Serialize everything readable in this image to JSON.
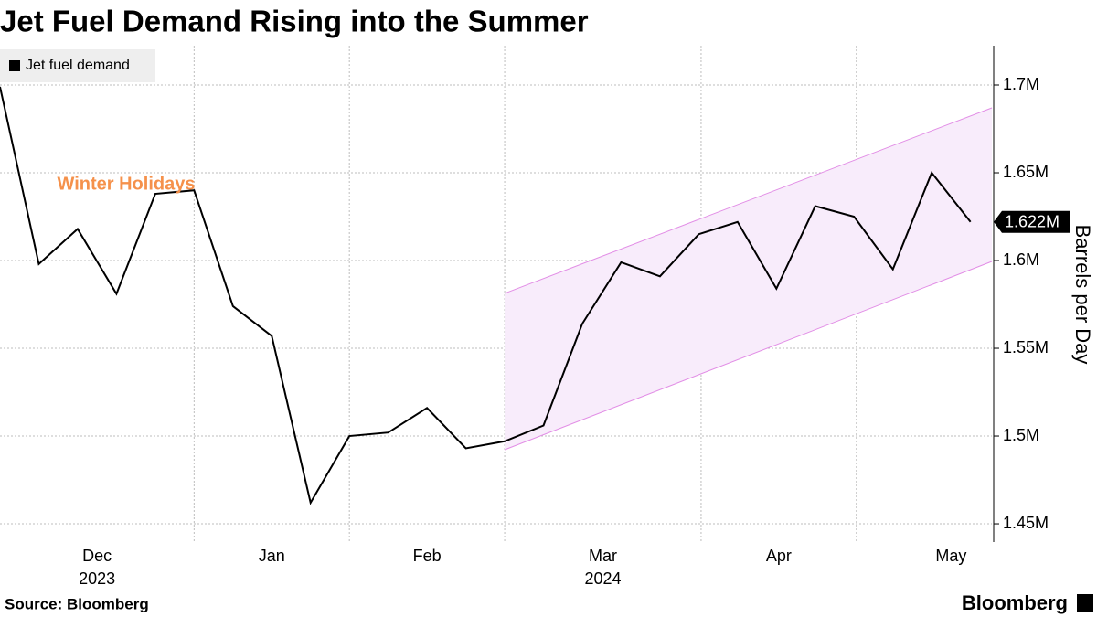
{
  "chart_data": {
    "type": "line",
    "title": "Jet Fuel Demand Rising into the Summer",
    "y_axis_label": "Barrels per Day",
    "source": "Source: Bloomberg",
    "brand": "Bloomberg",
    "x": [
      0,
      1,
      2,
      3,
      4,
      5,
      6,
      7,
      8,
      9,
      10,
      11,
      12,
      13,
      14,
      15,
      16,
      17,
      18,
      19,
      20,
      21,
      22,
      23,
      24,
      25
    ],
    "series": [
      {
        "name": "Jet fuel demand",
        "color": "#000000",
        "values": [
          1699000,
          1598000,
          1618000,
          1581000,
          1638000,
          1640000,
          1574000,
          1557000,
          1462000,
          1500000,
          1502000,
          1516000,
          1493000,
          1497000,
          1506000,
          1564000,
          1599000,
          1591000,
          1615000,
          1622000,
          1584000,
          1631000,
          1625000,
          1595000,
          1650000,
          1622000
        ],
        "last_value_label": "1.622M"
      }
    ],
    "xlim": [
      0,
      25.55
    ],
    "xticks": [
      {
        "value": 2.5,
        "label": "Dec"
      },
      {
        "value": 7,
        "label": "Jan"
      },
      {
        "value": 11,
        "label": "Feb"
      },
      {
        "value": 15.53,
        "label": "Mar"
      },
      {
        "value": 20.06,
        "label": "Apr"
      },
      {
        "value": 24.5,
        "label": "May"
      }
    ],
    "x_year_labels": [
      {
        "value": 2.5,
        "label": "2023"
      },
      {
        "value": 15.53,
        "label": "2024"
      }
    ],
    "xgrid": [
      5,
      9,
      13,
      18.06,
      22.06
    ],
    "ylim": [
      1439600,
      1722400
    ],
    "yticks": [
      {
        "value": 1450000,
        "label": "1.45M"
      },
      {
        "value": 1500000,
        "label": "1.5M"
      },
      {
        "value": 1550000,
        "label": "1.55M"
      },
      {
        "value": 1600000,
        "label": "1.6M"
      },
      {
        "value": 1650000,
        "label": "1.65M"
      },
      {
        "value": 1700000,
        "label": "1.7M"
      }
    ],
    "grid": true,
    "legend": "top-left",
    "channel": {
      "x": [
        13,
        25.55
      ],
      "upper": [
        1581300,
        1687000
      ],
      "lower": [
        1492200,
        1599500
      ],
      "color": "#e28ee6",
      "fill": "#f8ecfb"
    },
    "annotations": [
      {
        "text": "Winter Holidays",
        "x": 3.25,
        "y": 1643000,
        "color": "#f5914b"
      }
    ]
  }
}
